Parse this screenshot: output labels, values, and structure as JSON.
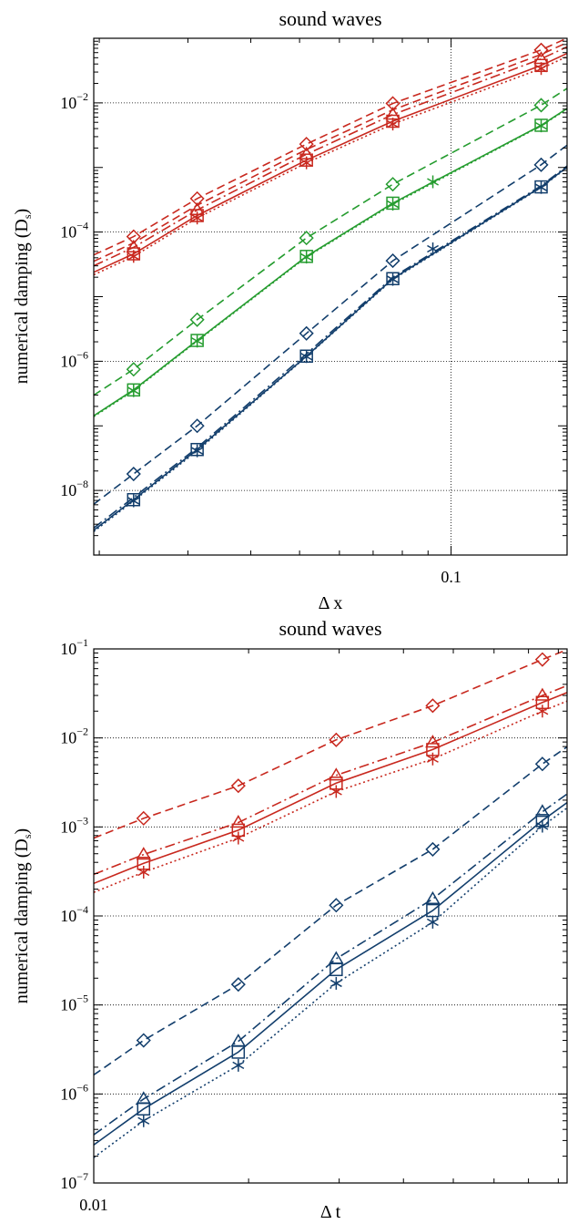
{
  "chart_data": [
    {
      "type": "line",
      "title": "sound waves",
      "xlabel": "Δ x",
      "ylabel": "numerical damping (D",
      "ylabel_sub": "s",
      "xscale": "log",
      "yscale": "log",
      "xlim": [
        0.0195,
        0.17
      ],
      "ylim": [
        1e-09,
        0.1
      ],
      "xticks": [
        {
          "value": 0.1,
          "label": "0.1"
        }
      ],
      "yticks": [
        {
          "value": 0.01,
          "base": "10",
          "exp": "−2"
        },
        {
          "value": 0.0001,
          "base": "10",
          "exp": "−4"
        },
        {
          "value": 1e-06,
          "base": "10",
          "exp": "−6"
        },
        {
          "value": 1e-08,
          "base": "10",
          "exp": "−8"
        }
      ],
      "grid": {
        "y": [
          0.01,
          0.0001,
          1e-06,
          1e-08
        ],
        "x": [
          0.1
        ]
      },
      "colors": {
        "red": "#c8281e",
        "green": "#259c2f",
        "blue": "#123e6c"
      },
      "x": [
        0.0234,
        0.0313,
        0.0516,
        0.0766,
        0.151
      ],
      "series": [
        {
          "color": "red",
          "dash": "dash",
          "marker": "diamond",
          "values": [
            8.5e-05,
            0.00033,
            0.0023,
            0.0098,
            0.066
          ]
        },
        {
          "color": "red",
          "dash": "dash",
          "marker": null,
          "values": [
            6.8e-05,
            0.00026,
            0.0019,
            0.0078,
            0.056
          ]
        },
        {
          "color": "red",
          "dash": "dashdot",
          "marker": "triangle",
          "values": [
            5.8e-05,
            0.00022,
            0.0016,
            0.0066,
            0.048
          ]
        },
        {
          "color": "red",
          "dash": "solid",
          "marker": "square",
          "values": [
            4.6e-05,
            0.00018,
            0.0013,
            0.0052,
            0.038
          ]
        },
        {
          "color": "red",
          "dash": "dot",
          "marker": "star",
          "values": [
            4.2e-05,
            0.000165,
            0.00118,
            0.0047,
            0.034
          ]
        },
        {
          "color": "green",
          "dash": "dash",
          "marker": "diamond",
          "values": [
            7.5e-07,
            4.4e-06,
            8.1e-05,
            0.00055,
            0.0092
          ]
        },
        {
          "color": "green",
          "dash": "solid",
          "marker": "square",
          "values": [
            3.6e-07,
            2.1e-06,
            4.2e-05,
            0.00028,
            0.0045
          ]
        },
        {
          "color": "green",
          "dash": "dot",
          "marker": "star",
          "values": [
            3.5e-07,
            2.05e-06,
            4.1e-05,
            0.00027,
            0.0044
          ]
        },
        {
          "color": "blue",
          "dash": "dash",
          "marker": "diamond",
          "values": [
            1.8e-08,
            1e-07,
            2.7e-06,
            3.6e-05,
            0.0011
          ]
        },
        {
          "color": "blue",
          "dash": "solid",
          "marker": "square",
          "values": [
            7.2e-09,
            4.3e-08,
            1.2e-06,
            1.9e-05,
            0.0005
          ]
        },
        {
          "color": "blue",
          "dash": "dashdot",
          "marker": null,
          "values": [
            7.8e-09,
            4.6e-08,
            1.3e-06,
            2e-05,
            0.00052
          ]
        },
        {
          "color": "blue",
          "dash": "dot",
          "marker": "star",
          "values": [
            6.9e-09,
            4.1e-08,
            1.18e-06,
            1.85e-05,
            0.00049
          ]
        }
      ],
      "extra_points": [
        {
          "x": 0.092,
          "y": 0.0006,
          "color": "green",
          "marker": "star"
        },
        {
          "x": 0.092,
          "y": 5.5e-05,
          "color": "blue",
          "marker": "star"
        }
      ]
    },
    {
      "type": "line",
      "title": "sound waves",
      "xlabel": "Δ t",
      "ylabel": "numerical damping (D",
      "ylabel_sub": "s",
      "xscale": "log",
      "yscale": "log",
      "xlim": [
        0.01,
        0.0832
      ],
      "ylim": [
        1e-07,
        0.1
      ],
      "xticks": [
        {
          "value": 0.01,
          "label": "0.01"
        }
      ],
      "yticks": [
        {
          "value": 0.1,
          "base": "10",
          "exp": "−1"
        },
        {
          "value": 0.01,
          "base": "10",
          "exp": "−2"
        },
        {
          "value": 0.001,
          "base": "10",
          "exp": "−3"
        },
        {
          "value": 0.0001,
          "base": "10",
          "exp": "−4"
        },
        {
          "value": 1e-05,
          "base": "10",
          "exp": "−5"
        },
        {
          "value": 1e-06,
          "base": "10",
          "exp": "−6"
        },
        {
          "value": 1e-07,
          "base": "10",
          "exp": "−7"
        }
      ],
      "grid": {
        "y": [
          0.01,
          0.001,
          0.0001,
          1e-05,
          1e-06
        ],
        "x": []
      },
      "colors": {
        "red": "#c8281e",
        "green": "#259c2f",
        "blue": "#123e6c"
      },
      "x": [
        0.0125,
        0.0191,
        0.0296,
        0.0456,
        0.0745
      ],
      "series": [
        {
          "color": "red",
          "dash": "dash",
          "marker": "diamond",
          "values": [
            0.00125,
            0.0029,
            0.0095,
            0.023,
            0.076
          ]
        },
        {
          "color": "red",
          "dash": "dashdot",
          "marker": "triangle",
          "values": [
            0.00049,
            0.00112,
            0.0038,
            0.0089,
            0.03
          ]
        },
        {
          "color": "red",
          "dash": "solid",
          "marker": "square",
          "values": [
            0.00039,
            0.00092,
            0.0031,
            0.0074,
            0.025
          ]
        },
        {
          "color": "red",
          "dash": "dot",
          "marker": "star",
          "values": [
            0.00031,
            0.00075,
            0.0025,
            0.0058,
            0.02
          ]
        },
        {
          "color": "blue",
          "dash": "dash",
          "marker": "diamond",
          "values": [
            4e-06,
            1.7e-05,
            0.000132,
            0.00056,
            0.0051
          ]
        },
        {
          "color": "blue",
          "dash": "dashdot",
          "marker": "triangle",
          "values": [
            8.8e-07,
            3.9e-06,
            3.3e-05,
            0.000155,
            0.00148
          ]
        },
        {
          "color": "blue",
          "dash": "solid",
          "marker": "square",
          "values": [
            6.8e-07,
            2.95e-06,
            2.5e-05,
            0.000115,
            0.00118
          ]
        },
        {
          "color": "blue",
          "dash": "dot",
          "marker": "star",
          "values": [
            5e-07,
            2.1e-06,
            1.75e-05,
            8.5e-05,
            0.00102
          ]
        }
      ],
      "extra_points": []
    }
  ]
}
